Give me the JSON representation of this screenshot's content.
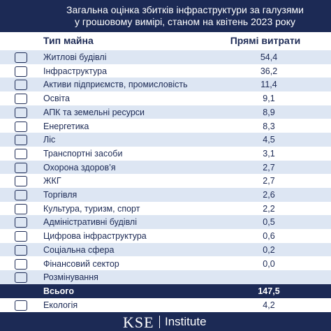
{
  "header": {
    "title_lines": [
      "Загальна оцінка збитків інфраструктури за галузями",
      "у грошовому вимірі, станом на квітень 2023 року"
    ]
  },
  "table": {
    "columns": [
      "Тип майна",
      "Прямі витрати"
    ],
    "rows": [
      {
        "label": "Житлові будівлі",
        "value": "54,4"
      },
      {
        "label": "Інфраструктура",
        "value": "36,2"
      },
      {
        "label": "Активи підприємств, промисловість",
        "value": "11,4"
      },
      {
        "label": "Освіта",
        "value": "9,1"
      },
      {
        "label": "АПК та земельні ресурси",
        "value": "8,9"
      },
      {
        "label": "Енергетика",
        "value": "8,3"
      },
      {
        "label": "Ліс",
        "value": "4,5"
      },
      {
        "label": "Транспортні засоби",
        "value": "3,1"
      },
      {
        "label": "Охорона здоров’я",
        "value": "2,7"
      },
      {
        "label": "ЖКГ",
        "value": "2,7"
      },
      {
        "label": "Торгівля",
        "value": "2,6"
      },
      {
        "label": "Культура, туризм, спорт",
        "value": "2,2"
      },
      {
        "label": "Адміністративні будівлі",
        "value": "0,5"
      },
      {
        "label": "Цифрова інфраструктура",
        "value": "0,6"
      },
      {
        "label": "Соціальна сфера",
        "value": "0,2"
      },
      {
        "label": "Фінансовий сектор",
        "value": "0,0"
      },
      {
        "label": "Розмінування"
      }
    ],
    "total": {
      "label": "Всього",
      "value": "147,5"
    },
    "extra": {
      "label": "Екологія",
      "value": "4,2"
    }
  },
  "footer": {
    "brand": "KSE",
    "name": "Institute"
  }
}
